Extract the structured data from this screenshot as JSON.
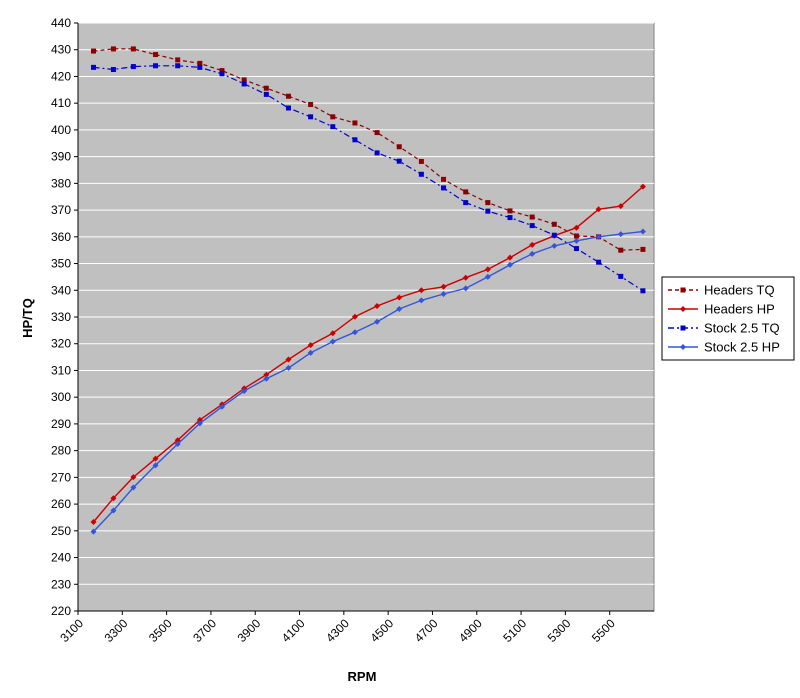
{
  "chart_data": {
    "type": "line",
    "title": "",
    "xlabel": "RPM",
    "ylabel": "HP/TQ",
    "xlim": [
      3100,
      5700
    ],
    "ylim": [
      220,
      440
    ],
    "xticks": [
      3100,
      3300,
      3500,
      3700,
      3900,
      4100,
      4300,
      4500,
      4700,
      4900,
      5100,
      5300,
      5500
    ],
    "yticks": [
      220,
      230,
      240,
      250,
      260,
      270,
      280,
      290,
      300,
      310,
      320,
      330,
      340,
      350,
      360,
      370,
      380,
      390,
      400,
      410,
      420,
      430,
      440
    ],
    "grid": true,
    "legend_position": "right",
    "plot_background": "#c0c0c0",
    "series": [
      {
        "name": "Headers TQ",
        "color": "#8b0000",
        "line_style": "dashed",
        "marker": "square",
        "points": [
          [
            3170,
            429.5
          ],
          [
            3260,
            430.3
          ],
          [
            3350,
            430.3
          ],
          [
            3450,
            428.2
          ],
          [
            3550,
            426.2
          ],
          [
            3650,
            424.9
          ],
          [
            3750,
            422.2
          ],
          [
            3850,
            418.7
          ],
          [
            3950,
            415.6
          ],
          [
            4050,
            412.6
          ],
          [
            4150,
            409.5
          ],
          [
            4250,
            404.9
          ],
          [
            4350,
            402.6
          ],
          [
            4450,
            399.0
          ],
          [
            4550,
            393.7
          ],
          [
            4650,
            388.2
          ],
          [
            4750,
            381.5
          ],
          [
            4850,
            376.8
          ],
          [
            4950,
            372.8
          ],
          [
            5050,
            369.7
          ],
          [
            5150,
            367.4
          ],
          [
            5250,
            364.7
          ],
          [
            5350,
            360.3
          ],
          [
            5450,
            360.0
          ],
          [
            5550,
            355.0
          ],
          [
            5650,
            355.3
          ]
        ]
      },
      {
        "name": "Headers HP",
        "color": "#cc0000",
        "line_style": "solid",
        "marker": "diamond",
        "points": [
          [
            3170,
            253.3
          ],
          [
            3260,
            262.2
          ],
          [
            3350,
            270.1
          ],
          [
            3450,
            277.0
          ],
          [
            3550,
            283.9
          ],
          [
            3650,
            291.5
          ],
          [
            3750,
            297.3
          ],
          [
            3850,
            303.3
          ],
          [
            3950,
            308.4
          ],
          [
            4050,
            314.1
          ],
          [
            4150,
            319.5
          ],
          [
            4250,
            323.9
          ],
          [
            4350,
            330.1
          ],
          [
            4450,
            334.1
          ],
          [
            4550,
            337.3
          ],
          [
            4650,
            340.0
          ],
          [
            4750,
            341.3
          ],
          [
            4850,
            344.7
          ],
          [
            4950,
            347.8
          ],
          [
            5050,
            352.2
          ],
          [
            5150,
            357.0
          ],
          [
            5250,
            360.4
          ],
          [
            5350,
            363.4
          ],
          [
            5450,
            370.3
          ],
          [
            5550,
            371.5
          ],
          [
            5650,
            378.8
          ]
        ]
      },
      {
        "name": "Stock 2.5 TQ",
        "color": "#0000cc",
        "line_style": "dashdot",
        "marker": "square",
        "points": [
          [
            3170,
            423.4
          ],
          [
            3260,
            422.6
          ],
          [
            3350,
            423.7
          ],
          [
            3450,
            424.0
          ],
          [
            3550,
            424.0
          ],
          [
            3650,
            423.4
          ],
          [
            3750,
            421.0
          ],
          [
            3850,
            417.2
          ],
          [
            3950,
            413.3
          ],
          [
            4050,
            408.2
          ],
          [
            4150,
            404.9
          ],
          [
            4250,
            401.2
          ],
          [
            4350,
            396.3
          ],
          [
            4450,
            391.4
          ],
          [
            4550,
            388.3
          ],
          [
            4650,
            383.4
          ],
          [
            4750,
            378.3
          ],
          [
            4850,
            372.8
          ],
          [
            4950,
            369.6
          ],
          [
            5050,
            367.2
          ],
          [
            5150,
            364.2
          ],
          [
            5250,
            360.6
          ],
          [
            5350,
            355.6
          ],
          [
            5450,
            350.5
          ],
          [
            5550,
            345.2
          ],
          [
            5650,
            339.8
          ]
        ]
      },
      {
        "name": "Stock 2.5 HP",
        "color": "#3355dd",
        "line_style": "solid",
        "marker": "diamond",
        "points": [
          [
            3170,
            249.7
          ],
          [
            3260,
            257.6
          ],
          [
            3350,
            266.2
          ],
          [
            3450,
            274.5
          ],
          [
            3550,
            282.5
          ],
          [
            3650,
            290.2
          ],
          [
            3750,
            296.4
          ],
          [
            3850,
            302.3
          ],
          [
            3950,
            306.9
          ],
          [
            4050,
            310.9
          ],
          [
            4150,
            316.6
          ],
          [
            4250,
            320.8
          ],
          [
            4350,
            324.3
          ],
          [
            4450,
            328.2
          ],
          [
            4550,
            333.0
          ],
          [
            4650,
            336.2
          ],
          [
            4750,
            338.6
          ],
          [
            4850,
            340.7
          ],
          [
            4950,
            345.0
          ],
          [
            5050,
            349.5
          ],
          [
            5150,
            353.6
          ],
          [
            5250,
            356.6
          ],
          [
            5350,
            358.5
          ],
          [
            5450,
            360.0
          ],
          [
            5550,
            361.0
          ],
          [
            5650,
            362.0
          ]
        ]
      }
    ]
  }
}
